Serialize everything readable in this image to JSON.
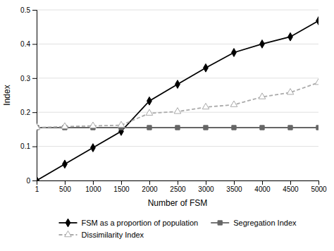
{
  "chart_data": {
    "type": "line",
    "x": [
      1,
      500,
      1000,
      1500,
      2000,
      2500,
      3000,
      3500,
      4000,
      4500,
      5000
    ],
    "series": [
      {
        "name": "FSM as a proportion of population",
        "color": "#000000",
        "marker": "diamond",
        "line_style": "solid",
        "values": [
          0.0,
          0.048,
          0.096,
          0.144,
          0.233,
          0.282,
          0.33,
          0.375,
          0.4,
          0.421,
          0.468
        ]
      },
      {
        "name": "Segregation Index",
        "color": "#666666",
        "marker": "square",
        "line_style": "solid",
        "values": [
          0.155,
          0.155,
          0.155,
          0.155,
          0.155,
          0.155,
          0.155,
          0.155,
          0.155,
          0.155,
          0.155
        ]
      },
      {
        "name": "Dissimilarity Index",
        "color": "#aaaaaa",
        "marker": "open-triangle",
        "line_style": "dashed",
        "values": [
          0.155,
          0.158,
          0.16,
          0.162,
          0.197,
          0.202,
          0.215,
          0.222,
          0.245,
          0.258,
          0.287
        ]
      }
    ],
    "xlabel": "Number of FSM",
    "ylabel": "Index",
    "xlim": [
      1,
      5000
    ],
    "ylim": [
      0,
      0.5
    ],
    "xticks": [
      1,
      500,
      1000,
      1500,
      2000,
      2500,
      3000,
      3500,
      4000,
      4500,
      5000
    ],
    "yticks": [
      0,
      0.1,
      0.2,
      0.3,
      0.4,
      0.5
    ],
    "grid": true,
    "legend": "bottom"
  }
}
